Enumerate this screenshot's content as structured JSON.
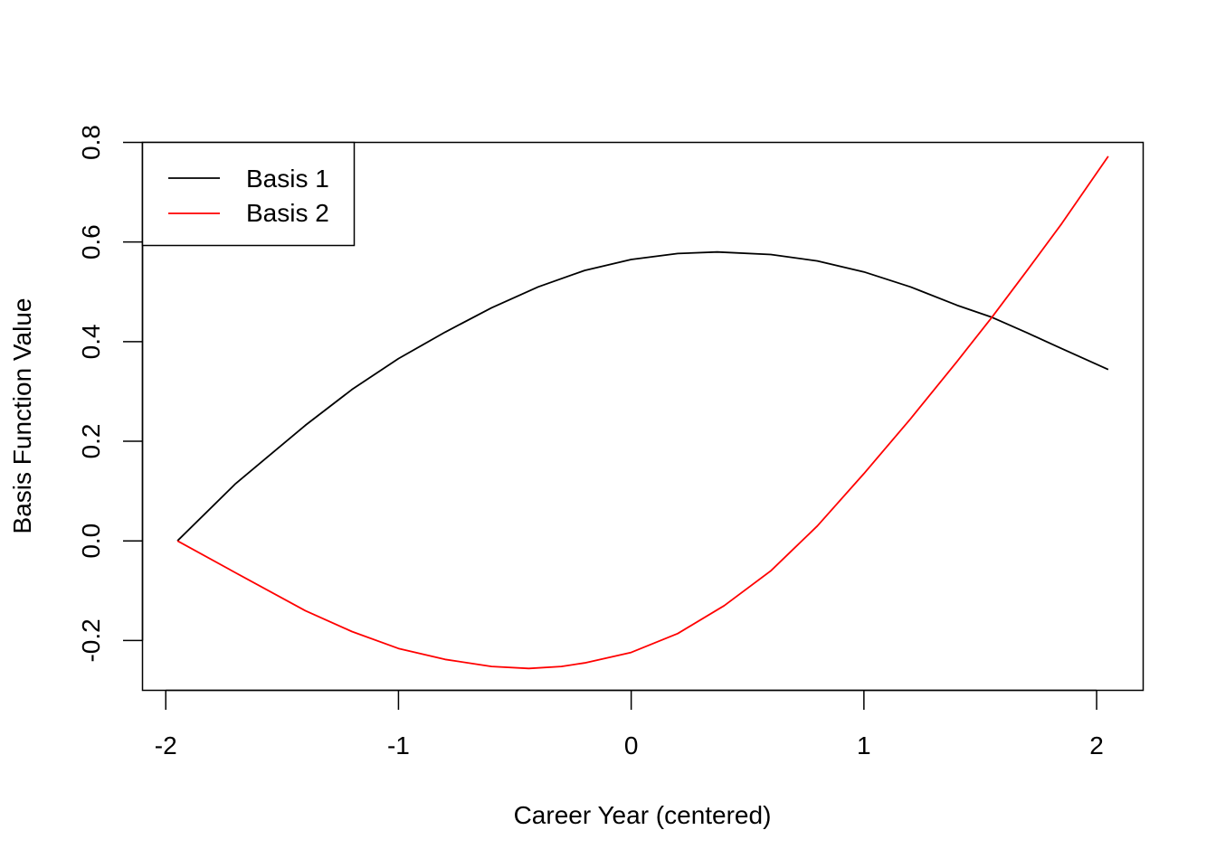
{
  "chart_data": {
    "type": "line",
    "xlabel": "Career Year (centered)",
    "ylabel": "Basis Function Value",
    "xlim": [
      -2.1,
      2.2
    ],
    "ylim": [
      -0.3,
      0.8
    ],
    "xticks": [
      -2,
      -1,
      0,
      1,
      2
    ],
    "xtick_labels": [
      "-2",
      "-1",
      "0",
      "1",
      "2"
    ],
    "yticks": [
      -0.2,
      0.0,
      0.2,
      0.4,
      0.6,
      0.8
    ],
    "ytick_labels": [
      "-0.2",
      "0.0",
      "0.2",
      "0.4",
      "0.6",
      "0.8"
    ],
    "grid": false,
    "legend_position": "top-left",
    "series": [
      {
        "name": "Basis 1",
        "color": "#000000",
        "x": [
          -1.95,
          -1.7,
          -1.4,
          -1.2,
          -1.0,
          -0.8,
          -0.6,
          -0.4,
          -0.2,
          0.0,
          0.2,
          0.37,
          0.6,
          0.8,
          1.0,
          1.2,
          1.4,
          1.55,
          1.7,
          1.85,
          2.05
        ],
        "y": [
          0.0,
          0.115,
          0.232,
          0.304,
          0.366,
          0.419,
          0.468,
          0.51,
          0.543,
          0.565,
          0.577,
          0.58,
          0.575,
          0.562,
          0.54,
          0.51,
          0.473,
          0.449,
          0.418,
          0.386,
          0.344
        ]
      },
      {
        "name": "Basis 2",
        "color": "#ff0000",
        "x": [
          -1.95,
          -1.7,
          -1.4,
          -1.2,
          -1.0,
          -0.8,
          -0.6,
          -0.44,
          -0.3,
          -0.2,
          0.0,
          0.2,
          0.4,
          0.6,
          0.8,
          1.0,
          1.2,
          1.4,
          1.55,
          1.7,
          1.85,
          2.05
        ],
        "y": [
          0.0,
          -0.064,
          -0.14,
          -0.182,
          -0.216,
          -0.238,
          -0.252,
          -0.256,
          -0.252,
          -0.245,
          -0.224,
          -0.186,
          -0.13,
          -0.06,
          0.03,
          0.135,
          0.245,
          0.36,
          0.449,
          0.542,
          0.637,
          0.772
        ]
      }
    ]
  }
}
